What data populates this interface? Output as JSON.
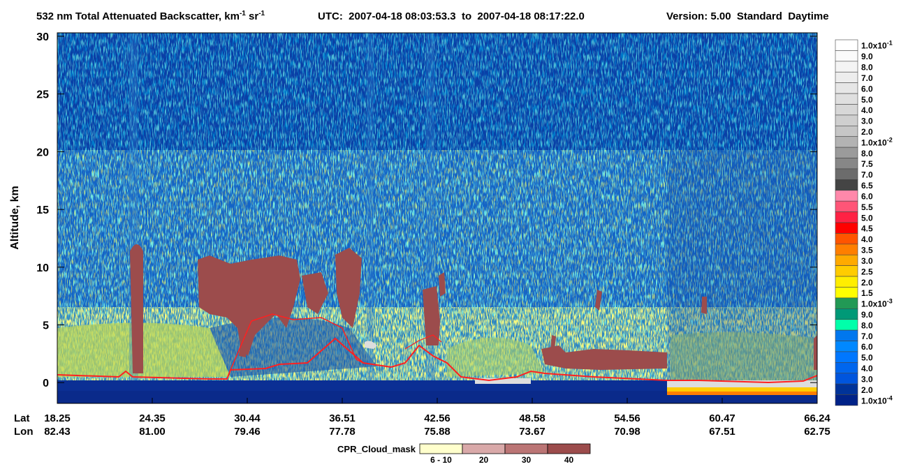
{
  "chart_data": {
    "type": "curtain",
    "title": [
      "532 nm Total Attenuated Backscatter, km",
      "-1",
      " sr",
      "-1"
    ],
    "utc": "UTC:  2007-04-18 08:03:53.3  to  2007-04-18 08:17:22.0",
    "version": "Version: 5.00  Standard  Daytime",
    "ylabel": "Altitude, km",
    "ylim": [
      -1.8,
      30.3
    ],
    "yticks": [
      0,
      5,
      10,
      15,
      20,
      25,
      30
    ],
    "x_rows": [
      {
        "name": "Lat",
        "labels": [
          "18.25",
          "24.35",
          "30.44",
          "36.51",
          "42.56",
          "48.58",
          "54.56",
          "60.47",
          "66.24"
        ]
      },
      {
        "name": "Lon",
        "labels": [
          "82.43",
          "81.00",
          "79.46",
          "77.78",
          "75.88",
          "73.67",
          "70.98",
          "67.51",
          "62.75"
        ]
      }
    ],
    "colorbar": {
      "labels": [
        {
          "base": "1.0x10",
          "exp": "-1"
        },
        "9.0",
        "8.0",
        "7.0",
        "6.0",
        "5.0",
        "4.0",
        "3.0",
        "2.0",
        {
          "base": "1.0x10",
          "exp": "-2"
        },
        "8.0",
        "7.5",
        "7.0",
        "6.5",
        "6.0",
        "5.5",
        "5.0",
        "4.5",
        "4.0",
        "3.5",
        "3.0",
        "2.5",
        "2.0",
        "1.5",
        {
          "base": "1.0x10",
          "exp": "-3"
        },
        "9.0",
        "8.0",
        "7.0",
        "6.0",
        "5.0",
        "4.0",
        "3.0",
        "2.0",
        {
          "base": "1.0x10",
          "exp": "-4"
        }
      ],
      "colors": [
        "#ffffff",
        "#fafafa",
        "#f4f4f4",
        "#ededed",
        "#e6e6e6",
        "#dfdfdf",
        "#d7d7d7",
        "#cfcfcf",
        "#c6c6c6",
        "#b3b3b3",
        "#9b9b9b",
        "#878787",
        "#6c6c6c",
        "#444444",
        "#ff88aa",
        "#ff5577",
        "#ff2244",
        "#ff0000",
        "#ff5500",
        "#ff7f00",
        "#ffaa00",
        "#ffcc00",
        "#ffee00",
        "#ffff00",
        "#229955",
        "#009977",
        "#00ffaa",
        "#0077ee",
        "#0088ff",
        "#0077ff",
        "#0066ee",
        "#0055dd",
        "#003399",
        "#002288"
      ]
    },
    "cloud_mask": {
      "title": "CPR_Cloud_mask",
      "labels": [
        "6 - 10",
        "20",
        "30",
        "40"
      ],
      "colors": [
        "#ffffcc",
        "#d9a9a9",
        "#bb7575",
        "#9c4c4c"
      ]
    }
  }
}
